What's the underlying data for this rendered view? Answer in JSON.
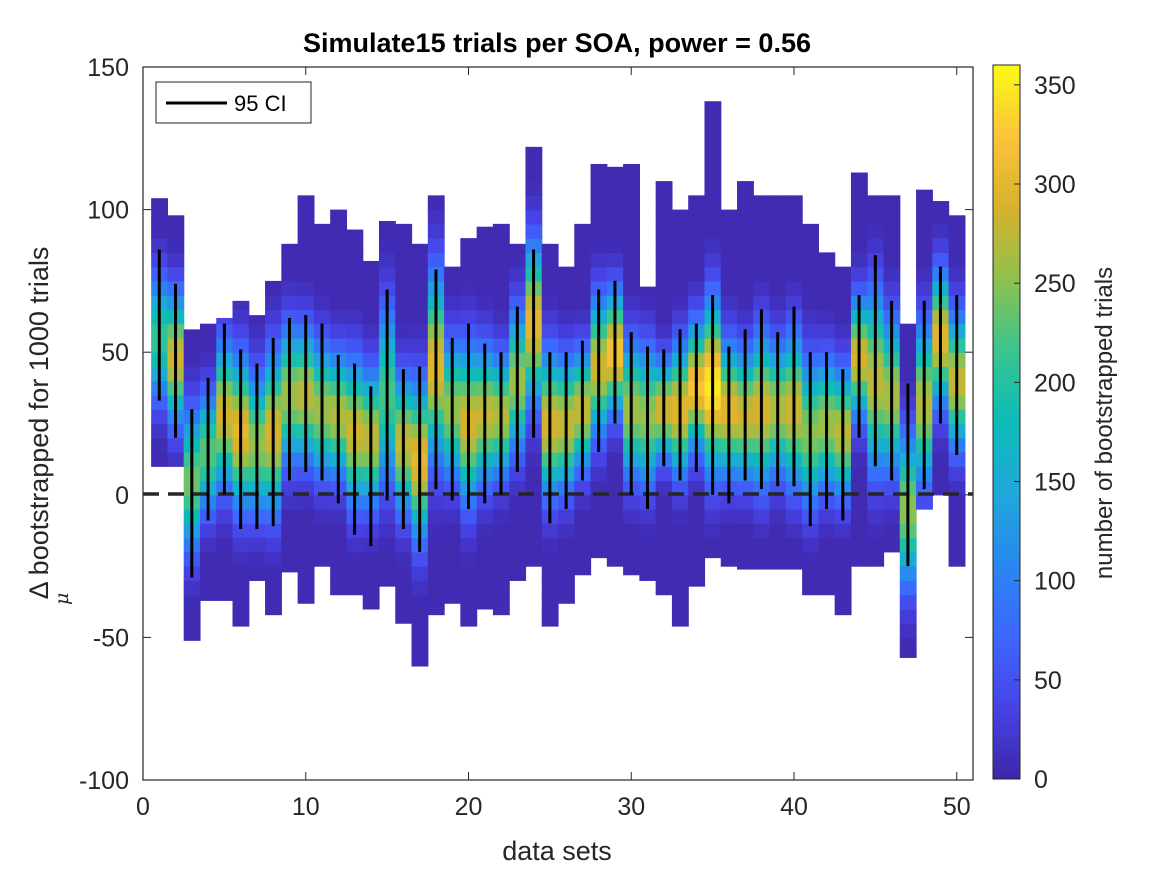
{
  "chart_data": {
    "type": "heatmap",
    "title": "Simulate15 trials per SOA, power = 0.56",
    "xlabel": "data sets",
    "ylabel": "Δ  bootstrapped  for 1000 trials",
    "ylabel_subscript": "μ",
    "xlim": [
      0,
      51
    ],
    "ylim": [
      -100,
      150
    ],
    "xticks": [
      "0",
      "10",
      "20",
      "30",
      "40",
      "50"
    ],
    "yticks": [
      "-100",
      "-50",
      "0",
      "50",
      "100",
      "150"
    ],
    "colorbar": {
      "label": "number of bootstrapped trials",
      "range": [
        0,
        360
      ],
      "ticks": [
        "0",
        "50",
        "100",
        "150",
        "200",
        "250",
        "300",
        "350"
      ]
    },
    "legend": {
      "entries": [
        "95 CI"
      ],
      "position": "top-left"
    },
    "reference_line": {
      "y": 0,
      "style": "dashed"
    },
    "bin_width": 5,
    "datasets": [
      {
        "x": 1,
        "lo": 10,
        "hi": 104,
        "mode": 55,
        "ci_lo": 33,
        "ci_hi": 86,
        "peak": 210
      },
      {
        "x": 2,
        "lo": 10,
        "hi": 98,
        "mode": 48,
        "ci_lo": 20,
        "ci_hi": 74,
        "peak": 285
      },
      {
        "x": 3,
        "lo": -51,
        "hi": 58,
        "mode": 5,
        "ci_lo": -29,
        "ci_hi": 30,
        "peak": 240
      },
      {
        "x": 4,
        "lo": -37,
        "hi": 60,
        "mode": 15,
        "ci_lo": -9,
        "ci_hi": 41,
        "peak": 230
      },
      {
        "x": 5,
        "lo": -37,
        "hi": 62,
        "mode": 28,
        "ci_lo": 0,
        "ci_hi": 60,
        "peak": 285
      },
      {
        "x": 6,
        "lo": -46,
        "hi": 68,
        "mode": 22,
        "ci_lo": -12,
        "ci_hi": 51,
        "peak": 300
      },
      {
        "x": 7,
        "lo": -30,
        "hi": 63,
        "mode": 18,
        "ci_lo": -12,
        "ci_hi": 46,
        "peak": 255
      },
      {
        "x": 8,
        "lo": -42,
        "hi": 75,
        "mode": 22,
        "ci_lo": -11,
        "ci_hi": 55,
        "peak": 290
      },
      {
        "x": 9,
        "lo": -27,
        "hi": 88,
        "mode": 35,
        "ci_lo": 5,
        "ci_hi": 62,
        "peak": 260
      },
      {
        "x": 10,
        "lo": -38,
        "hi": 105,
        "mode": 35,
        "ci_lo": 8,
        "ci_hi": 63,
        "peak": 275
      },
      {
        "x": 11,
        "lo": -25,
        "hi": 95,
        "mode": 30,
        "ci_lo": 5,
        "ci_hi": 60,
        "peak": 260
      },
      {
        "x": 12,
        "lo": -35,
        "hi": 100,
        "mode": 28,
        "ci_lo": -3,
        "ci_hi": 49,
        "peak": 270
      },
      {
        "x": 13,
        "lo": -35,
        "hi": 93,
        "mode": 22,
        "ci_lo": -14,
        "ci_hi": 46,
        "peak": 285
      },
      {
        "x": 14,
        "lo": -40,
        "hi": 82,
        "mode": 20,
        "ci_lo": -18,
        "ci_hi": 38,
        "peak": 275
      },
      {
        "x": 15,
        "lo": -32,
        "hi": 96,
        "mode": 35,
        "ci_lo": -2,
        "ci_hi": 72,
        "peak": 220
      },
      {
        "x": 16,
        "lo": -45,
        "hi": 95,
        "mode": 18,
        "ci_lo": -12,
        "ci_hi": 44,
        "peak": 280
      },
      {
        "x": 17,
        "lo": -60,
        "hi": 88,
        "mode": 12,
        "ci_lo": -20,
        "ci_hi": 45,
        "peak": 300
      },
      {
        "x": 18,
        "lo": -42,
        "hi": 105,
        "mode": 45,
        "ci_lo": 2,
        "ci_hi": 79,
        "peak": 295
      },
      {
        "x": 19,
        "lo": -38,
        "hi": 80,
        "mode": 30,
        "ci_lo": -2,
        "ci_hi": 55,
        "peak": 255
      },
      {
        "x": 20,
        "lo": -46,
        "hi": 90,
        "mode": 25,
        "ci_lo": -5,
        "ci_hi": 60,
        "peak": 290
      },
      {
        "x": 21,
        "lo": -40,
        "hi": 94,
        "mode": 28,
        "ci_lo": -3,
        "ci_hi": 53,
        "peak": 280
      },
      {
        "x": 22,
        "lo": -42,
        "hi": 95,
        "mode": 28,
        "ci_lo": 0,
        "ci_hi": 50,
        "peak": 270
      },
      {
        "x": 23,
        "lo": -30,
        "hi": 88,
        "mode": 40,
        "ci_lo": 8,
        "ci_hi": 66,
        "peak": 260
      },
      {
        "x": 24,
        "lo": -25,
        "hi": 122,
        "mode": 60,
        "ci_lo": 20,
        "ci_hi": 86,
        "peak": 300
      },
      {
        "x": 25,
        "lo": -46,
        "hi": 88,
        "mode": 25,
        "ci_lo": -10,
        "ci_hi": 50,
        "peak": 290
      },
      {
        "x": 26,
        "lo": -38,
        "hi": 80,
        "mode": 25,
        "ci_lo": -5,
        "ci_hi": 50,
        "peak": 280
      },
      {
        "x": 27,
        "lo": -28,
        "hi": 95,
        "mode": 30,
        "ci_lo": 5,
        "ci_hi": 54,
        "peak": 280
      },
      {
        "x": 28,
        "lo": -22,
        "hi": 116,
        "mode": 45,
        "ci_lo": 15,
        "ci_hi": 72,
        "peak": 285
      },
      {
        "x": 29,
        "lo": -25,
        "hi": 115,
        "mode": 50,
        "ci_lo": 25,
        "ci_hi": 75,
        "peak": 320
      },
      {
        "x": 30,
        "lo": -28,
        "hi": 116,
        "mode": 30,
        "ci_lo": 0,
        "ci_hi": 57,
        "peak": 260
      },
      {
        "x": 31,
        "lo": -30,
        "hi": 73,
        "mode": 28,
        "ci_lo": -5,
        "ci_hi": 52,
        "peak": 255
      },
      {
        "x": 32,
        "lo": -35,
        "hi": 110,
        "mode": 30,
        "ci_lo": 10,
        "ci_hi": 51,
        "peak": 290
      },
      {
        "x": 33,
        "lo": -46,
        "hi": 100,
        "mode": 30,
        "ci_lo": 5,
        "ci_hi": 58,
        "peak": 300
      },
      {
        "x": 34,
        "lo": -32,
        "hi": 105,
        "mode": 38,
        "ci_lo": 8,
        "ci_hi": 60,
        "peak": 320
      },
      {
        "x": 35,
        "lo": -22,
        "hi": 138,
        "mode": 38,
        "ci_lo": 0,
        "ci_hi": 70,
        "peak": 350
      },
      {
        "x": 36,
        "lo": -25,
        "hi": 100,
        "mode": 30,
        "ci_lo": -3,
        "ci_hi": 52,
        "peak": 300
      },
      {
        "x": 37,
        "lo": -26,
        "hi": 110,
        "mode": 28,
        "ci_lo": 5,
        "ci_hi": 58,
        "peak": 285
      },
      {
        "x": 38,
        "lo": -26,
        "hi": 105,
        "mode": 30,
        "ci_lo": 2,
        "ci_hi": 65,
        "peak": 290
      },
      {
        "x": 39,
        "lo": -26,
        "hi": 105,
        "mode": 30,
        "ci_lo": 3,
        "ci_hi": 57,
        "peak": 270
      },
      {
        "x": 40,
        "lo": -26,
        "hi": 105,
        "mode": 30,
        "ci_lo": 3,
        "ci_hi": 66,
        "peak": 285
      },
      {
        "x": 41,
        "lo": -35,
        "hi": 95,
        "mode": 22,
        "ci_lo": -11,
        "ci_hi": 50,
        "peak": 250
      },
      {
        "x": 42,
        "lo": -35,
        "hi": 85,
        "mode": 25,
        "ci_lo": -5,
        "ci_hi": 50,
        "peak": 260
      },
      {
        "x": 43,
        "lo": -42,
        "hi": 80,
        "mode": 22,
        "ci_lo": -9,
        "ci_hi": 44,
        "peak": 275
      },
      {
        "x": 44,
        "lo": -25,
        "hi": 113,
        "mode": 48,
        "ci_lo": 20,
        "ci_hi": 70,
        "peak": 290
      },
      {
        "x": 45,
        "lo": -25,
        "hi": 105,
        "mode": 40,
        "ci_lo": 10,
        "ci_hi": 84,
        "peak": 275
      },
      {
        "x": 46,
        "lo": -20,
        "hi": 105,
        "mode": 35,
        "ci_lo": 5,
        "ci_hi": 68,
        "peak": 265
      },
      {
        "x": 47,
        "lo": -57,
        "hi": 60,
        "mode": -5,
        "ci_lo": -25,
        "ci_hi": 39,
        "peak": 250
      },
      {
        "x": 48,
        "lo": -5,
        "hi": 107,
        "mode": 32,
        "ci_lo": 2,
        "ci_hi": 68,
        "peak": 270
      },
      {
        "x": 49,
        "lo": 0,
        "hi": 103,
        "mode": 55,
        "ci_lo": 25,
        "ci_hi": 80,
        "peak": 300
      },
      {
        "x": 50,
        "lo": -25,
        "hi": 98,
        "mode": 40,
        "ci_lo": 14,
        "ci_hi": 70,
        "peak": 280
      }
    ]
  }
}
